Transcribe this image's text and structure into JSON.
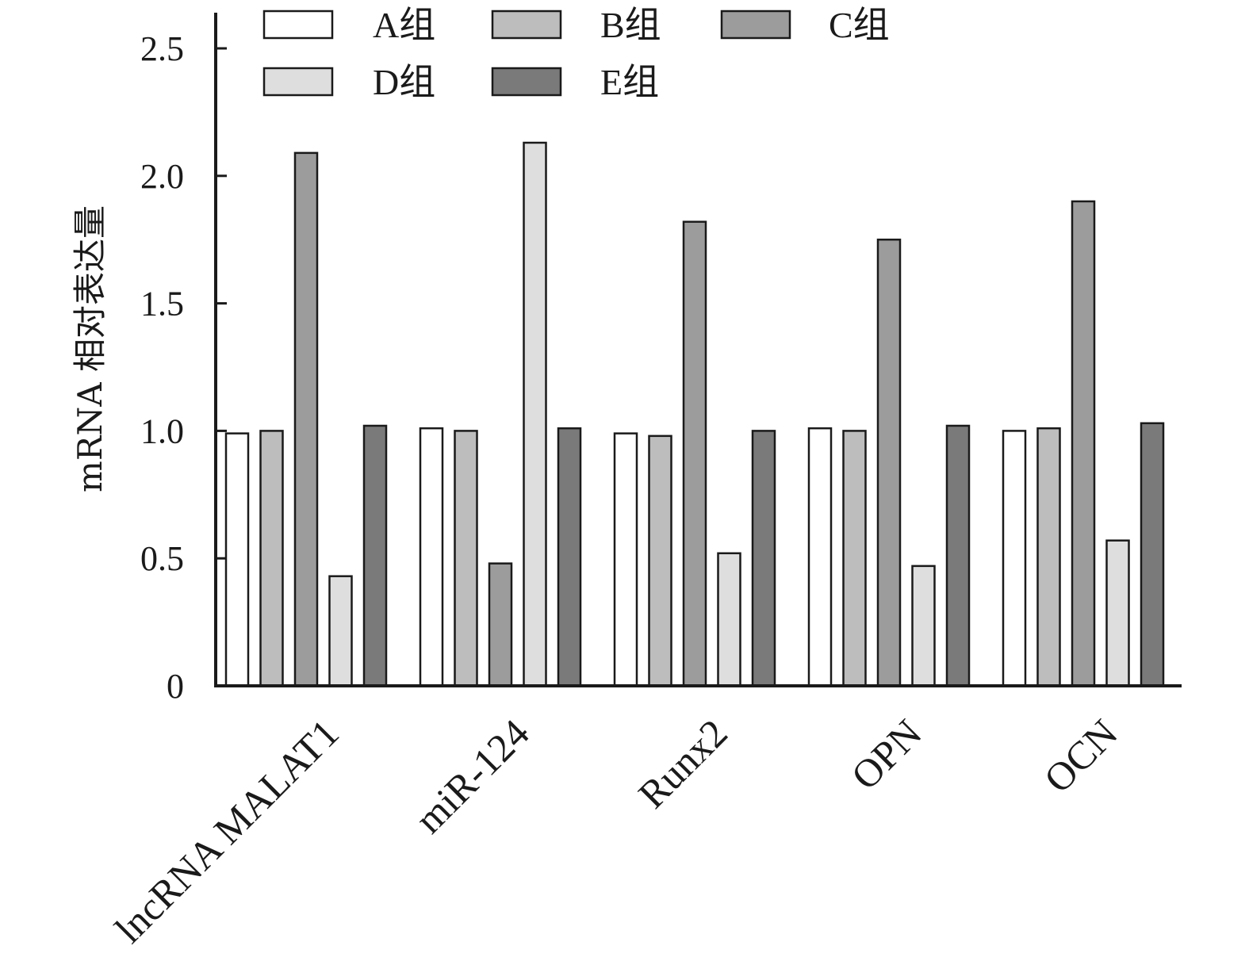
{
  "chart_data": {
    "type": "bar",
    "title": "",
    "xlabel": "",
    "ylabel": "mRNA 相对表达量",
    "ylim": [
      0,
      2.5
    ],
    "yticks": [
      "0",
      "0.5",
      "1.0",
      "1.5",
      "2.0",
      "2.5"
    ],
    "categories": [
      "lncRNA MALAT1",
      "miR-124",
      "Runx2",
      "OPN",
      "OCN"
    ],
    "series": [
      {
        "name": "A组",
        "color": "#ffffff",
        "values": [
          0.99,
          1.01,
          0.99,
          1.01,
          1.0
        ]
      },
      {
        "name": "B组",
        "color": "#bdbdbd",
        "values": [
          1.0,
          1.0,
          0.98,
          1.0,
          1.01
        ]
      },
      {
        "name": "C组",
        "color": "#9c9c9c",
        "values": [
          2.09,
          0.48,
          1.82,
          1.75,
          1.9
        ]
      },
      {
        "name": "D组",
        "color": "#dedede",
        "values": [
          0.43,
          2.13,
          0.52,
          0.47,
          0.57
        ]
      },
      {
        "name": "E组",
        "color": "#7a7a7a",
        "values": [
          1.02,
          1.01,
          1.0,
          1.02,
          1.03
        ]
      }
    ],
    "legend": {
      "position": "top",
      "columns": 3
    },
    "grid": false,
    "edge_color": "#1a1a1a"
  }
}
